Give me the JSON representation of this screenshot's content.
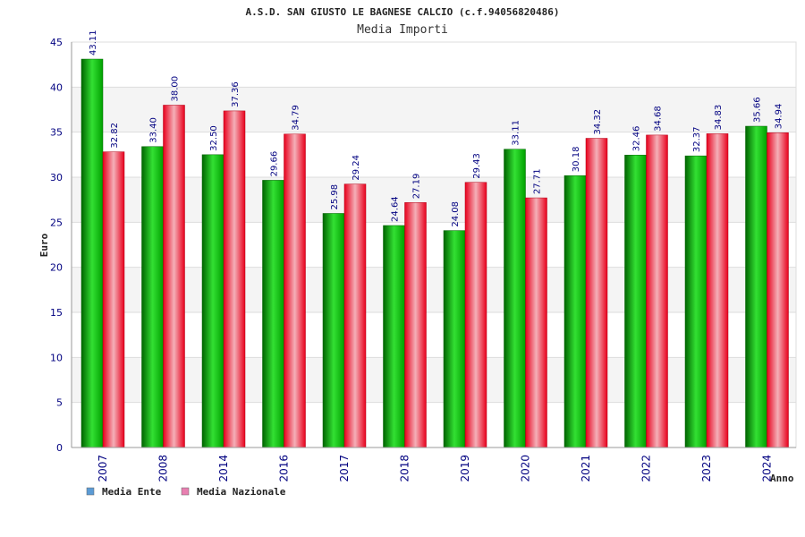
{
  "chart_data": {
    "type": "bar",
    "title": "A.S.D. SAN GIUSTO LE BAGNESE CALCIO (c.f.94056820486)",
    "subtitle": "Media Importi",
    "ylabel": "Euro",
    "xlabel": "Anno",
    "ylim": [
      0,
      45
    ],
    "yticks": [
      0,
      5,
      10,
      15,
      20,
      25,
      30,
      35,
      40,
      45
    ],
    "categories": [
      "2007",
      "2008",
      "2014",
      "2016",
      "2017",
      "2018",
      "2019",
      "2020",
      "2021",
      "2022",
      "2023",
      "2024"
    ],
    "series": [
      {
        "name": "Media Ente",
        "color": "#00a000",
        "legend_color": "#5b9bd5",
        "values": [
          43.11,
          33.4,
          32.5,
          29.66,
          25.98,
          24.64,
          24.08,
          33.11,
          30.18,
          32.46,
          32.37,
          35.66
        ],
        "labels": [
          "43.11",
          "33.40",
          "32.50",
          "29.66",
          "25.98",
          "24.64",
          "24.08",
          "33.11",
          "30.18",
          "32.46",
          "32.37",
          "35.66"
        ]
      },
      {
        "name": "Media Nazionale",
        "color": "#e8001c",
        "legend_color": "#e87fb0",
        "values": [
          32.82,
          38.0,
          37.36,
          34.79,
          29.24,
          27.19,
          29.43,
          27.71,
          34.32,
          34.68,
          34.83,
          34.94
        ],
        "labels": [
          "32.82",
          "38.00",
          "37.36",
          "34.79",
          "29.24",
          "27.19",
          "29.43",
          "27.71",
          "34.32",
          "34.68",
          "34.83",
          "34.94"
        ]
      }
    ],
    "grid": true,
    "legend_position": "bottom-left"
  }
}
